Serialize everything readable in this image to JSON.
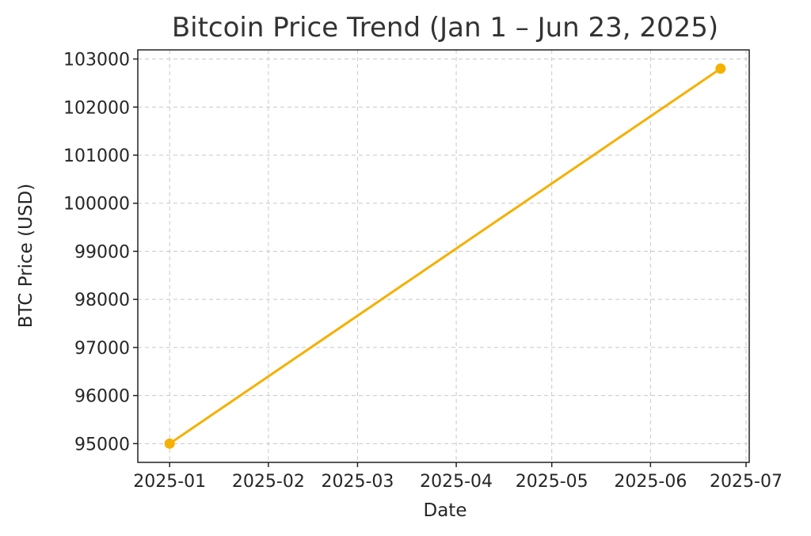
{
  "chart_data": {
    "type": "line",
    "title": "Bitcoin Price Trend (Jan 1 – Jun 23, 2025)",
    "xlabel": "Date",
    "ylabel": "BTC Price (USD)",
    "x": [
      "2025-01-01",
      "2025-06-23"
    ],
    "series": [
      {
        "values": [
          95000,
          102800
        ],
        "color": "#f5b000"
      }
    ],
    "xticks": [
      "2025-01-01",
      "2025-02-01",
      "2025-03-01",
      "2025-04-01",
      "2025-05-01",
      "2025-06-01",
      "2025-07-01"
    ],
    "xtick_labels": [
      "2025-01",
      "2025-02",
      "2025-03",
      "2025-04",
      "2025-05",
      "2025-06",
      "2025-07"
    ],
    "xlim": [
      "2024-12-22",
      "2025-07-02"
    ],
    "yticks": [
      95000,
      96000,
      97000,
      98000,
      99000,
      100000,
      101000,
      102000,
      103000
    ],
    "ytick_labels": [
      "95000",
      "96000",
      "97000",
      "98000",
      "99000",
      "100000",
      "101000",
      "102000",
      "103000"
    ],
    "ylim": [
      94610,
      103190
    ],
    "grid": true,
    "markers": true
  }
}
